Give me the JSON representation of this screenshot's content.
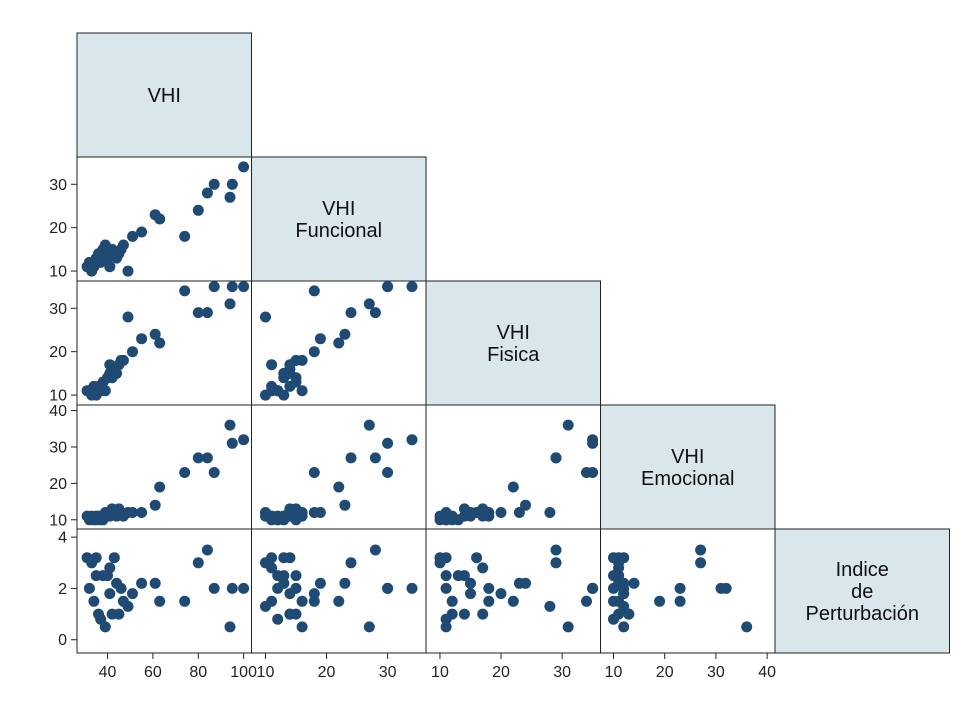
{
  "chart_data": {
    "type": "scatter",
    "variables": [
      {
        "key": "vhi",
        "label": [
          "VHI"
        ],
        "range": [
          30,
          100
        ],
        "ticks": [
          40,
          60,
          80,
          100
        ]
      },
      {
        "key": "funcional",
        "label": [
          "VHI",
          "Funcional"
        ],
        "range": [
          9,
          35
        ],
        "ticks": [
          10,
          20,
          30
        ]
      },
      {
        "key": "fisica",
        "label": [
          "VHI",
          "Fisica"
        ],
        "range": [
          9,
          35
        ],
        "ticks": [
          10,
          20,
          30
        ]
      },
      {
        "key": "emocional",
        "label": [
          "VHI",
          "Emocional"
        ],
        "range": [
          9,
          40
        ],
        "ticks": [
          10,
          20,
          30,
          40
        ]
      },
      {
        "key": "indice",
        "label": [
          "Indice",
          "de",
          "Perturbación"
        ],
        "range": [
          -0.3,
          4.1
        ],
        "ticks": [
          0,
          2,
          4
        ]
      }
    ],
    "marker_color": "#1f4a73",
    "diagonal_fill": "#d9e6ec",
    "observations": [
      {
        "vhi": 31,
        "funcional": 11,
        "fisica": 11,
        "emocional": 11,
        "indice": 3.2
      },
      {
        "vhi": 32,
        "funcional": 12,
        "fisica": 11,
        "emocional": 10,
        "indice": 2.0
      },
      {
        "vhi": 33,
        "funcional": 10,
        "fisica": 10,
        "emocional": 11,
        "indice": 3.0
      },
      {
        "vhi": 34,
        "funcional": 11,
        "fisica": 12,
        "emocional": 10,
        "indice": 1.5
      },
      {
        "vhi": 35,
        "funcional": 12,
        "fisica": 11,
        "emocional": 11,
        "indice": 2.5
      },
      {
        "vhi": 35,
        "funcional": 13,
        "fisica": 10,
        "emocional": 10,
        "indice": 3.2
      },
      {
        "vhi": 36,
        "funcional": 14,
        "fisica": 12,
        "emocional": 11,
        "indice": 1.0
      },
      {
        "vhi": 37,
        "funcional": 12,
        "fisica": 11,
        "emocional": 10,
        "indice": 0.8
      },
      {
        "vhi": 38,
        "funcional": 15,
        "fisica": 13,
        "emocional": 10,
        "indice": 2.5
      },
      {
        "vhi": 39,
        "funcional": 16,
        "fisica": 11,
        "emocional": 12,
        "indice": 0.5
      },
      {
        "vhi": 40,
        "funcional": 13,
        "fisica": 14,
        "emocional": 11,
        "indice": 2.5
      },
      {
        "vhi": 41,
        "funcional": 14,
        "fisica": 15,
        "emocional": 12,
        "indice": 1.8
      },
      {
        "vhi": 41,
        "funcional": 11,
        "fisica": 17,
        "emocional": 11,
        "indice": 2.8
      },
      {
        "vhi": 42,
        "funcional": 15,
        "fisica": 14,
        "emocional": 13,
        "indice": 1.0
      },
      {
        "vhi": 43,
        "funcional": 14,
        "fisica": 16,
        "emocional": 12,
        "indice": 3.2
      },
      {
        "vhi": 44,
        "funcional": 13,
        "fisica": 15,
        "emocional": 11,
        "indice": 2.2
      },
      {
        "vhi": 45,
        "funcional": 14,
        "fisica": 17,
        "emocional": 13,
        "indice": 1.0
      },
      {
        "vhi": 46,
        "funcional": 15,
        "fisica": 18,
        "emocional": 12,
        "indice": 2.0
      },
      {
        "vhi": 47,
        "funcional": 16,
        "fisica": 18,
        "emocional": 11,
        "indice": 1.5
      },
      {
        "vhi": 49,
        "funcional": 10,
        "fisica": 28,
        "emocional": 12,
        "indice": 1.3
      },
      {
        "vhi": 51,
        "funcional": 18,
        "fisica": 20,
        "emocional": 12,
        "indice": 1.8
      },
      {
        "vhi": 55,
        "funcional": 19,
        "fisica": 23,
        "emocional": 12,
        "indice": 2.2
      },
      {
        "vhi": 61,
        "funcional": 23,
        "fisica": 24,
        "emocional": 14,
        "indice": 2.2
      },
      {
        "vhi": 63,
        "funcional": 22,
        "fisica": 22,
        "emocional": 19,
        "indice": 1.5
      },
      {
        "vhi": 74,
        "funcional": 18,
        "fisica": 34,
        "emocional": 23,
        "indice": 1.5
      },
      {
        "vhi": 80,
        "funcional": 24,
        "fisica": 29,
        "emocional": 27,
        "indice": 3.0
      },
      {
        "vhi": 84,
        "funcional": 28,
        "fisica": 29,
        "emocional": 27,
        "indice": 3.5
      },
      {
        "vhi": 87,
        "funcional": 30,
        "fisica": 35,
        "emocional": 23,
        "indice": 2.0
      },
      {
        "vhi": 94,
        "funcional": 27,
        "fisica": 31,
        "emocional": 36,
        "indice": 0.5
      },
      {
        "vhi": 95,
        "funcional": 30,
        "fisica": 35,
        "emocional": 31,
        "indice": 2.0
      },
      {
        "vhi": 100,
        "funcional": 34,
        "fisica": 35,
        "emocional": 32,
        "indice": 2.0
      }
    ]
  }
}
